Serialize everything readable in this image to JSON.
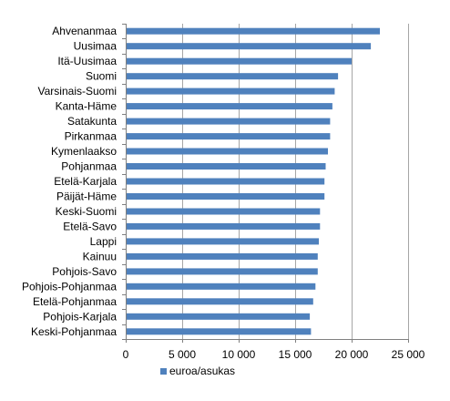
{
  "chart_data": {
    "type": "bar",
    "orientation": "horizontal",
    "title": "",
    "xlabel": "",
    "ylabel": "",
    "categories": [
      "Ahvenanmaa",
      "Uusimaa",
      "Itä-Uusimaa",
      "Suomi",
      "Varsinais-Suomi",
      "Kanta-Häme",
      "Satakunta",
      "Pirkanmaa",
      "Kymenlaakso",
      "Pohjanmaa",
      "Etelä-Karjala",
      "Päijät-Häme",
      "Keski-Suomi",
      "Etelä-Savo",
      "Lappi",
      "Kainuu",
      "Pohjois-Savo",
      "Pohjois-Pohjanmaa",
      "Etelä-Pohjanmaa",
      "Pohjois-Karjala",
      "Keski-Pohjanmaa"
    ],
    "series": [
      {
        "name": "euroa/asukas",
        "color": "#4f81bd",
        "values": [
          22500,
          21700,
          20000,
          18800,
          18500,
          18300,
          18100,
          18100,
          17900,
          17700,
          17600,
          17600,
          17200,
          17200,
          17100,
          17000,
          17000,
          16800,
          16600,
          16300,
          16400
        ]
      }
    ],
    "xlim": [
      0,
      25000
    ],
    "xticks": [
      0,
      5000,
      10000,
      15000,
      20000,
      25000
    ],
    "xtick_labels": [
      "0",
      "5 000",
      "10 000",
      "15 000",
      "20 000",
      "25 000"
    ],
    "grid": "vertical",
    "legend_position": "bottom-left"
  }
}
